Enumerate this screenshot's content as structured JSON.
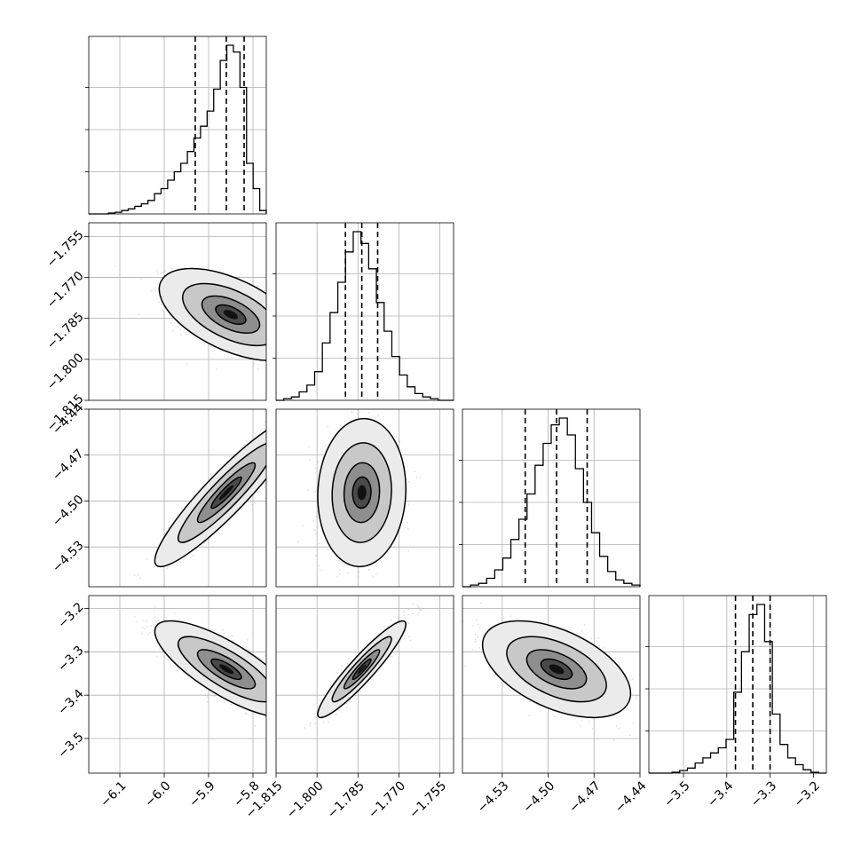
{
  "chart_data": {
    "type": "corner",
    "parameters": 4,
    "grid": true,
    "axes": {
      "p1": {
        "range": [
          -6.17,
          -5.77
        ],
        "ticks": [
          -6.1,
          -6.0,
          -5.9,
          -5.8
        ],
        "tick_labels": [
          "−6.1",
          "−6.0",
          "−5.9",
          "−5.8"
        ]
      },
      "p2": {
        "range": [
          -1.815,
          -1.75
        ],
        "ticks": [
          -1.815,
          -1.8,
          -1.785,
          -1.77,
          -1.755
        ],
        "tick_labels": [
          "−1.815",
          "−1.800",
          "−1.785",
          "−1.770",
          "−1.755"
        ]
      },
      "p3": {
        "range": [
          -4.556,
          -4.44
        ],
        "ticks": [
          -4.53,
          -4.5,
          -4.47,
          -4.44
        ],
        "tick_labels": [
          "−4.53",
          "−4.50",
          "−4.47",
          "−4.44"
        ]
      },
      "p4": {
        "range": [
          -3.58,
          -3.17
        ],
        "ticks": [
          -3.5,
          -3.4,
          -3.3,
          -3.2
        ],
        "tick_labels": [
          "−3.5",
          "−3.4",
          "−3.3",
          "−3.2"
        ]
      }
    },
    "quantiles": {
      "p1": [
        -5.93,
        -5.86,
        -5.82
      ],
      "p2": [
        -1.7896,
        -1.7836,
        -1.7778
      ],
      "p3": [
        -4.515,
        -4.4945,
        -4.4745
      ],
      "p4": [
        -3.38,
        -3.34,
        -3.3
      ]
    },
    "histograms": {
      "p1": [
        0,
        0,
        0,
        0.005,
        0.01,
        0.02,
        0.03,
        0.045,
        0.06,
        0.08,
        0.12,
        0.15,
        0.2,
        0.25,
        0.3,
        0.37,
        0.45,
        0.52,
        0.61,
        0.74,
        0.91,
        1.0,
        0.96,
        0.75,
        0.3,
        0.15,
        0.02
      ],
      "p2": [
        0,
        0.01,
        0.02,
        0.05,
        0.09,
        0.17,
        0.34,
        0.52,
        0.7,
        0.88,
        1.0,
        0.93,
        0.78,
        0.58,
        0.41,
        0.26,
        0.15,
        0.08,
        0.04,
        0.02,
        0.01,
        0,
        0
      ],
      "p3": [
        0,
        0.01,
        0.02,
        0.05,
        0.1,
        0.17,
        0.28,
        0.4,
        0.55,
        0.72,
        0.85,
        0.96,
        1.0,
        0.9,
        0.7,
        0.5,
        0.32,
        0.18,
        0.09,
        0.04,
        0.02,
        0.01
      ],
      "p4": [
        0,
        0,
        0,
        0.005,
        0.015,
        0.03,
        0.06,
        0.09,
        0.12,
        0.15,
        0.2,
        0.48,
        0.72,
        0.94,
        1.0,
        0.78,
        0.35,
        0.17,
        0.09,
        0.05,
        0.02,
        0.005,
        0
      ]
    },
    "pairs": [
      {
        "x": "p1",
        "y": "p2",
        "mean": [
          -5.85,
          -1.7836
        ],
        "sd": [
          0.065,
          0.0068
        ],
        "corr": -0.55
      },
      {
        "x": "p1",
        "y": "p3",
        "mean": [
          -5.86,
          -4.4945
        ],
        "sd": [
          0.065,
          0.0195
        ],
        "corr": 0.92
      },
      {
        "x": "p2",
        "y": "p3",
        "mean": [
          -1.7836,
          -4.4945
        ],
        "sd": [
          0.0065,
          0.0195
        ],
        "corr": 0.05
      },
      {
        "x": "p1",
        "y": "p4",
        "mean": [
          -5.86,
          -3.34
        ],
        "sd": [
          0.065,
          0.045
        ],
        "corr": -0.78
      },
      {
        "x": "p2",
        "y": "p4",
        "mean": [
          -1.7836,
          -3.34
        ],
        "sd": [
          0.0065,
          0.045
        ],
        "corr": 0.93
      },
      {
        "x": "p3",
        "y": "p4",
        "mean": [
          -4.4945,
          -3.34
        ],
        "sd": [
          0.0195,
          0.045
        ],
        "corr": -0.5
      }
    ]
  }
}
